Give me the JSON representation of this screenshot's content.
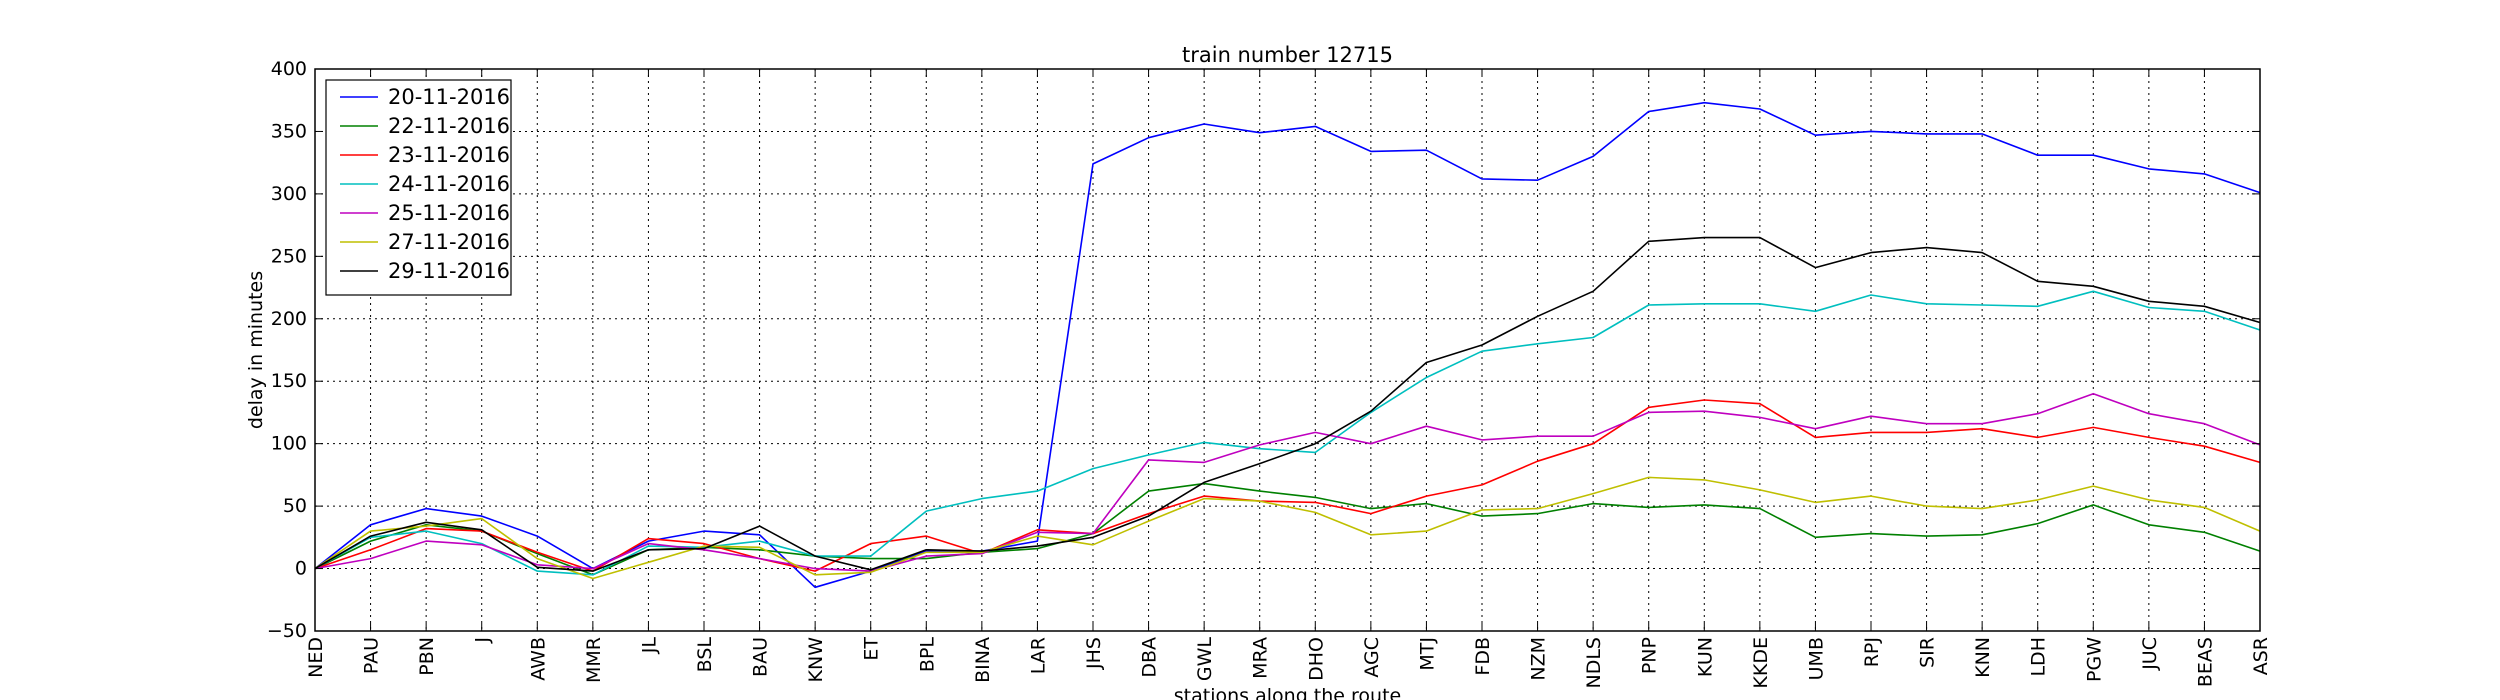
{
  "chart_data": {
    "type": "line",
    "title": "train number 12715",
    "xlabel": "stations along the route",
    "ylabel": "delay in minutes",
    "ylim": [
      -50,
      400
    ],
    "yticks": [
      -50,
      0,
      50,
      100,
      150,
      200,
      250,
      300,
      350,
      400
    ],
    "grid": true,
    "legend_position": "top-left",
    "categories": [
      "NED",
      "PAU",
      "PBN",
      "J",
      "AWB",
      "MMR",
      "JL",
      "BSL",
      "BAU",
      "KNW",
      "ET",
      "BPL",
      "BINA",
      "LAR",
      "JHS",
      "DBA",
      "GWL",
      "MRA",
      "DHO",
      "AGC",
      "MTJ",
      "FDB",
      "NZM",
      "NDLS",
      "PNP",
      "KUN",
      "KKDE",
      "UMB",
      "RPJ",
      "SIR",
      "KNN",
      "LDH",
      "PGW",
      "JUC",
      "BEAS",
      "ASR"
    ],
    "series": [
      {
        "name": "20-11-2016",
        "color": "#0000ff",
        "values": [
          0,
          35,
          48,
          42,
          26,
          0,
          22,
          30,
          27,
          -15,
          -2,
          14,
          14,
          22,
          324,
          345,
          356,
          349,
          354,
          334,
          335,
          312,
          311,
          330,
          366,
          373,
          368,
          347,
          350,
          348,
          348,
          331,
          331,
          320,
          316,
          301
        ]
      },
      {
        "name": "22-11-2016",
        "color": "#008000",
        "values": [
          0,
          22,
          35,
          30,
          12,
          -5,
          15,
          17,
          15,
          10,
          8,
          8,
          13,
          16,
          28,
          62,
          68,
          62,
          57,
          48,
          52,
          42,
          44,
          52,
          49,
          51,
          48,
          25,
          28,
          26,
          27,
          36,
          51,
          35,
          29,
          14
        ]
      },
      {
        "name": "23-11-2016",
        "color": "#ff0000",
        "values": [
          0,
          15,
          32,
          30,
          13,
          -2,
          24,
          20,
          8,
          -2,
          20,
          26,
          12,
          31,
          28,
          44,
          58,
          54,
          53,
          44,
          58,
          67,
          86,
          100,
          129,
          135,
          132,
          105,
          109,
          109,
          112,
          105,
          113,
          105,
          98,
          85
        ]
      },
      {
        "name": "24-11-2016",
        "color": "#00bfbf",
        "values": [
          0,
          25,
          30,
          20,
          -2,
          -5,
          18,
          17,
          22,
          10,
          10,
          46,
          56,
          62,
          80,
          91,
          101,
          96,
          93,
          125,
          153,
          174,
          180,
          185,
          211,
          212,
          212,
          206,
          219,
          212,
          211,
          210,
          222,
          209,
          206,
          191
        ]
      },
      {
        "name": "25-11-2016",
        "color": "#bf00bf",
        "values": [
          0,
          8,
          22,
          19,
          3,
          0,
          20,
          15,
          8,
          0,
          -2,
          10,
          12,
          29,
          28,
          87,
          85,
          99,
          109,
          100,
          114,
          103,
          106,
          106,
          125,
          126,
          121,
          112,
          122,
          116,
          116,
          124,
          140,
          124,
          116,
          99
        ]
      },
      {
        "name": "27-11-2016",
        "color": "#bfbf00",
        "values": [
          0,
          30,
          34,
          40,
          8,
          -8,
          5,
          18,
          17,
          -5,
          -3,
          13,
          13,
          26,
          19,
          38,
          56,
          54,
          45,
          27,
          30,
          47,
          48,
          60,
          73,
          71,
          63,
          53,
          58,
          50,
          48,
          55,
          66,
          55,
          49,
          30
        ]
      },
      {
        "name": "29-11-2016",
        "color": "#000000",
        "values": [
          0,
          26,
          37,
          31,
          1,
          -2,
          15,
          16,
          34,
          10,
          -1,
          15,
          14,
          18,
          25,
          42,
          69,
          84,
          100,
          126,
          165,
          179,
          202,
          222,
          262,
          265,
          265,
          241,
          253,
          257,
          253,
          230,
          226,
          214,
          210,
          197
        ]
      }
    ]
  }
}
